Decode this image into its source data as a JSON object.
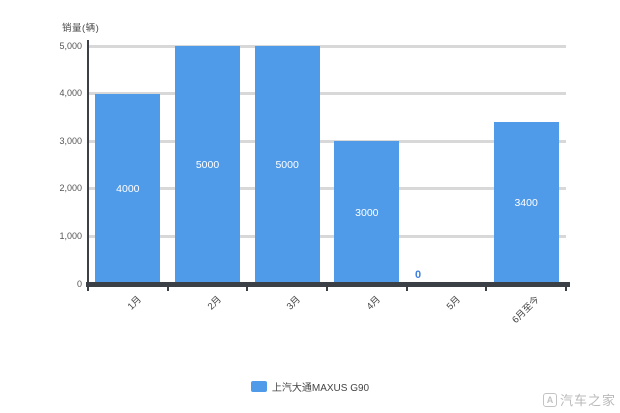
{
  "chart_data": {
    "type": "bar",
    "title": "",
    "ylabel": "销量(辆)",
    "xlabel": "",
    "categories": [
      "1月",
      "2月",
      "3月",
      "4月",
      "5月",
      "6月至今"
    ],
    "values": [
      4000,
      5000,
      5000,
      3000,
      0,
      3400
    ],
    "bar_labels": [
      "4000",
      "5000",
      "5000",
      "3000",
      "0",
      "3400"
    ],
    "ylim": [
      0,
      5000
    ],
    "tick_values": [
      5000,
      4000,
      3000,
      2000,
      1000,
      0
    ],
    "tick_labels": [
      "5,000",
      "4,000",
      "3,000",
      "2,000",
      "1,000",
      "0"
    ],
    "grid": true,
    "legend": {
      "label": "上汽大通MAXUS G90",
      "position": "bottom"
    },
    "colors": {
      "bar": "#4f9bea",
      "grid": "#d8d8d8",
      "axis": "#3b3f46",
      "tick_text": "#555555",
      "bar_label": "#ffffff",
      "zero_label": "#3f7fde"
    }
  },
  "watermark": {
    "logo": "autohome-logo",
    "logo_letter": "A",
    "text": "汽车之家"
  }
}
